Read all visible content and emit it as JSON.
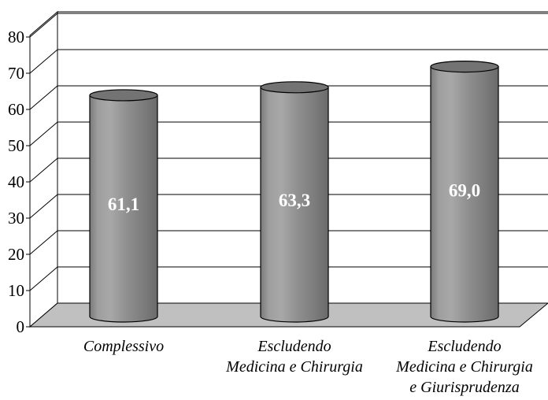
{
  "chart_data": {
    "type": "bar",
    "style": "3d-cylinder",
    "categories": [
      [
        "Complessivo"
      ],
      [
        "Escludendo",
        "Medicina e Chirurgia"
      ],
      [
        "Escludendo",
        "Medicina e Chirurgia",
        "e Giurisprudenza"
      ]
    ],
    "values": [
      61.1,
      63.3,
      69.0
    ],
    "data_labels": [
      "61,1",
      "63,3",
      "69,0"
    ],
    "yticks": [
      "0",
      "10",
      "20",
      "30",
      "40",
      "50",
      "60",
      "70",
      "80"
    ],
    "ylim": [
      0,
      80
    ],
    "grid": true,
    "legend": "none",
    "title": "",
    "xlabel": "",
    "ylabel": "",
    "colors": {
      "bar": "#8c8c8c",
      "floor": "#c0c0c0",
      "grid": "#000000",
      "label": "#ffffff"
    }
  }
}
